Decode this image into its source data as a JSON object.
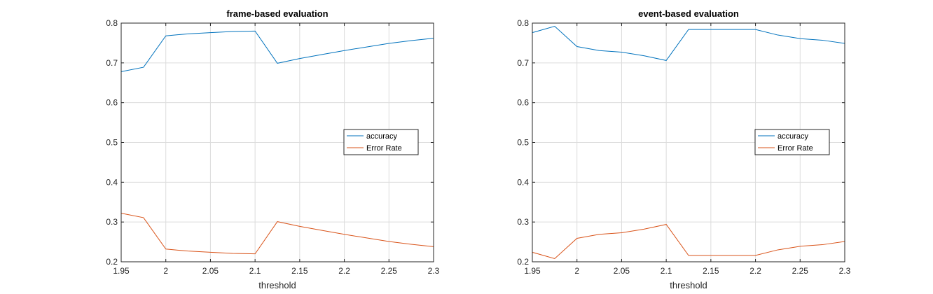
{
  "colors": {
    "accuracy": "#0072BD",
    "error_rate": "#D95319",
    "grid": "#dcdcdc",
    "axis": "#262626"
  },
  "chart_data": [
    {
      "type": "line",
      "title": "frame-based evaluation",
      "xlabel": "threshold",
      "ylabel": "",
      "xlim": [
        1.95,
        2.3
      ],
      "ylim": [
        0.2,
        0.8
      ],
      "xticks": [
        1.95,
        2,
        2.05,
        2.1,
        2.15,
        2.2,
        2.25,
        2.3
      ],
      "xtick_labels": [
        "1.95",
        "2",
        "2.05",
        "2.1",
        "2.15",
        "2.2",
        "2.25",
        "2.3"
      ],
      "yticks": [
        0.2,
        0.3,
        0.4,
        0.5,
        0.6,
        0.7,
        0.8
      ],
      "ytick_labels": [
        "0.2",
        "0.3",
        "0.4",
        "0.5",
        "0.6",
        "0.7",
        "0.8"
      ],
      "grid": true,
      "legend": "right",
      "x": [
        1.95,
        1.975,
        2.0,
        2.025,
        2.05,
        2.075,
        2.1,
        2.125,
        2.15,
        2.175,
        2.2,
        2.225,
        2.25,
        2.275,
        2.3
      ],
      "series": [
        {
          "name": "accuracy",
          "color_key": "accuracy",
          "values": [
            0.678,
            0.689,
            0.768,
            0.773,
            0.776,
            0.779,
            0.78,
            0.699,
            0.711,
            0.721,
            0.731,
            0.74,
            0.749,
            0.756,
            0.762
          ]
        },
        {
          "name": "Error Rate",
          "color_key": "error_rate",
          "values": [
            0.322,
            0.311,
            0.232,
            0.227,
            0.224,
            0.221,
            0.22,
            0.301,
            0.289,
            0.279,
            0.269,
            0.26,
            0.251,
            0.244,
            0.238
          ]
        }
      ]
    },
    {
      "type": "line",
      "title": "event-based evaluation",
      "xlabel": "threshold",
      "ylabel": "",
      "xlim": [
        1.95,
        2.3
      ],
      "ylim": [
        0.2,
        0.8
      ],
      "xticks": [
        1.95,
        2,
        2.05,
        2.1,
        2.15,
        2.2,
        2.25,
        2.3
      ],
      "xtick_labels": [
        "1.95",
        "2",
        "2.05",
        "2.1",
        "2.15",
        "2.2",
        "2.25",
        "2.3"
      ],
      "yticks": [
        0.2,
        0.3,
        0.4,
        0.5,
        0.6,
        0.7,
        0.8
      ],
      "ytick_labels": [
        "0.2",
        "0.3",
        "0.4",
        "0.5",
        "0.6",
        "0.7",
        "0.8"
      ],
      "grid": true,
      "legend": "right",
      "x": [
        1.95,
        1.975,
        2.0,
        2.025,
        2.05,
        2.075,
        2.1,
        2.125,
        2.15,
        2.175,
        2.2,
        2.225,
        2.25,
        2.275,
        2.3
      ],
      "series": [
        {
          "name": "accuracy",
          "color_key": "accuracy",
          "values": [
            0.776,
            0.792,
            0.741,
            0.731,
            0.727,
            0.718,
            0.706,
            0.784,
            0.784,
            0.784,
            0.784,
            0.77,
            0.761,
            0.757,
            0.749
          ]
        },
        {
          "name": "Error Rate",
          "color_key": "error_rate",
          "values": [
            0.224,
            0.208,
            0.259,
            0.269,
            0.273,
            0.282,
            0.294,
            0.216,
            0.216,
            0.216,
            0.216,
            0.23,
            0.239,
            0.243,
            0.251
          ]
        }
      ]
    }
  ]
}
